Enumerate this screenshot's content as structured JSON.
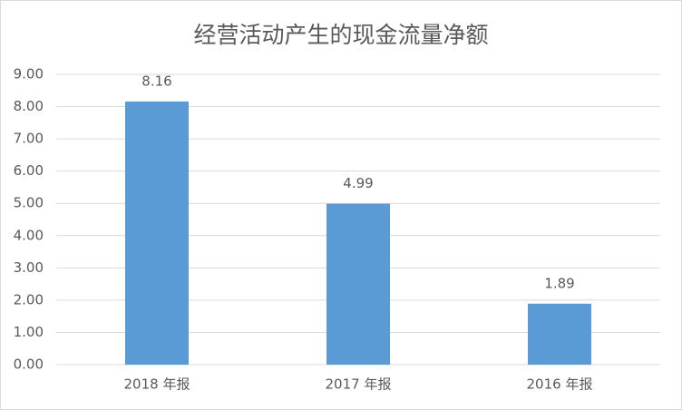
{
  "chart_data": {
    "type": "bar",
    "title": "经营活动产生的现金流量净额",
    "categories": [
      "2018 年报",
      "2017 年报",
      "2016 年报"
    ],
    "values": [
      8.16,
      4.99,
      1.89
    ],
    "color": "#5b9bd5",
    "ylim": [
      0,
      9
    ],
    "yticks": [
      {
        "value": 0,
        "label": "0.00"
      },
      {
        "value": 1,
        "label": "1.00"
      },
      {
        "value": 2,
        "label": "2.00"
      },
      {
        "value": 3,
        "label": "3.00"
      },
      {
        "value": 4,
        "label": "4.00"
      },
      {
        "value": 5,
        "label": "5.00"
      },
      {
        "value": 6,
        "label": "6.00"
      },
      {
        "value": 7,
        "label": "7.00"
      },
      {
        "value": 8,
        "label": "8.00"
      },
      {
        "value": 9,
        "label": "9.00"
      }
    ],
    "grid": true
  }
}
